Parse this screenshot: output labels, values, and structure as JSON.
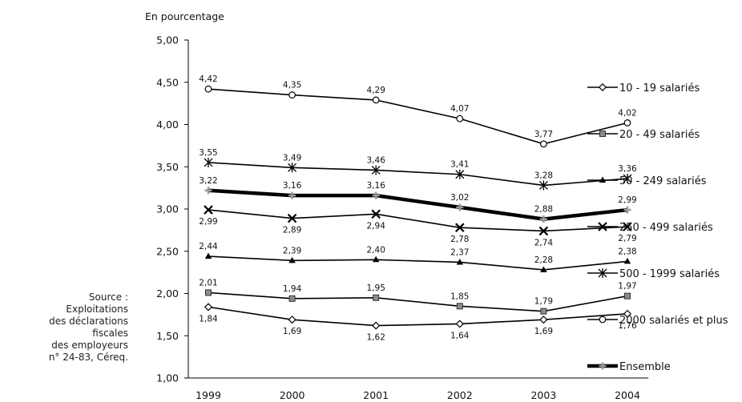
{
  "source_note": "Source :\nExploitations\ndes déclarations\nfiscales\ndes employeurs\nn° 24-83, Céreq.",
  "chart_data": {
    "type": "line",
    "title": "",
    "ylabel": "En pourcentage",
    "xlabel": "",
    "categories": [
      "1999",
      "2000",
      "2001",
      "2002",
      "2003",
      "2004"
    ],
    "ylim": [
      1.0,
      5.0
    ],
    "yticks": [
      "1,00",
      "1,50",
      "2,00",
      "2,50",
      "3,00",
      "3,50",
      "4,00",
      "4,50",
      "5,00"
    ],
    "grid": false,
    "legend_position": "right",
    "series": [
      {
        "name": "10 - 19 salariés",
        "marker": "diamond-open",
        "color": "#000000",
        "values": [
          1.84,
          1.69,
          1.62,
          1.64,
          1.69,
          1.76
        ],
        "labels": [
          "1,84",
          "1,69",
          "1,62",
          "1,64",
          "1,69",
          "1,76"
        ],
        "label_pos": "below"
      },
      {
        "name": "20 - 49 salariés",
        "marker": "square-gray",
        "color": "#000000",
        "values": [
          2.01,
          1.94,
          1.95,
          1.85,
          1.79,
          1.97
        ],
        "labels": [
          "2,01",
          "1,94",
          "1,95",
          "1,85",
          "1,79",
          "1,97"
        ],
        "label_pos": "above"
      },
      {
        "name": "50 - 249 salariés",
        "marker": "triangle",
        "color": "#000000",
        "values": [
          2.44,
          2.39,
          2.4,
          2.37,
          2.28,
          2.38
        ],
        "labels": [
          "2,44",
          "2,39",
          "2,40",
          "2,37",
          "2,28",
          "2,38"
        ],
        "label_pos": "above"
      },
      {
        "name": "250 - 499 salariés",
        "marker": "x",
        "color": "#000000",
        "values": [
          2.99,
          2.89,
          2.94,
          2.78,
          2.74,
          2.79
        ],
        "labels": [
          "2,99",
          "2,89",
          "2,94",
          "2,78",
          "2,74",
          "2,79"
        ],
        "label_pos": "below"
      },
      {
        "name": "500 - 1999 salariés",
        "marker": "asterisk",
        "color": "#000000",
        "values": [
          3.55,
          3.49,
          3.46,
          3.41,
          3.28,
          3.36
        ],
        "labels": [
          "3,55",
          "3,49",
          "3,46",
          "3,41",
          "3,28",
          "3,36"
        ],
        "label_pos": "above"
      },
      {
        "name": "2000 salariés et plus",
        "marker": "circle-open",
        "color": "#000000",
        "values": [
          4.42,
          4.35,
          4.29,
          4.07,
          3.77,
          4.02
        ],
        "labels": [
          "4,42",
          "4,35",
          "4,29",
          "4,07",
          "3,77",
          "4,02"
        ],
        "label_pos": "above"
      },
      {
        "name": "Ensemble",
        "marker": "plus-gray",
        "color": "#000000",
        "thick": true,
        "values": [
          3.22,
          3.16,
          3.16,
          3.02,
          2.88,
          2.99
        ],
        "labels": [
          "3,22",
          "3,16",
          "3,16",
          "3,02",
          "2,88",
          "2,99"
        ],
        "label_pos": "above"
      }
    ]
  }
}
